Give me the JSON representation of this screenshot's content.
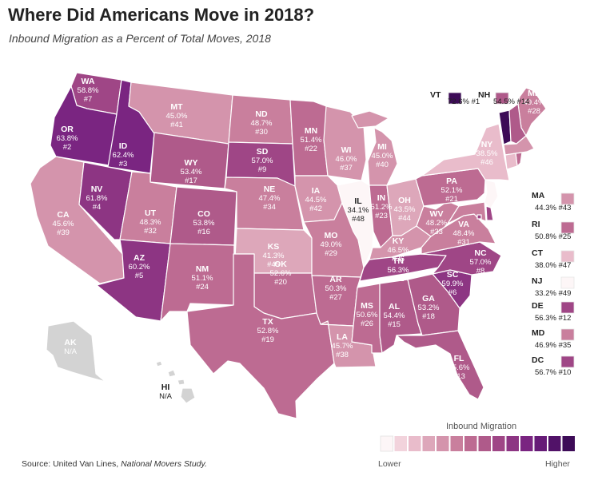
{
  "title": "Where Did Americans Move in 2018?",
  "subtitle": "Inbound Migration as a Percent of Total Moves, 2018",
  "source_prefix": "Source: United Van Lines, ",
  "source_study": "National Movers Study.",
  "legend": {
    "title": "Inbound Migration",
    "low_label": "Lower",
    "high_label": "Higher",
    "colors": [
      "#fdf6f7",
      "#f2d3dc",
      "#e9bccb",
      "#dda7ba",
      "#d494ac",
      "#c97f9d",
      "#bd6b92",
      "#af5a8a",
      "#9f4686",
      "#8d3583",
      "#7a2581",
      "#661b77",
      "#511268",
      "#3d0b57"
    ]
  },
  "colors": {
    "na": "#d3d3d3",
    "border": "#ffffff"
  },
  "states": [
    {
      "abbr": "WA",
      "value": "58.8%",
      "rank": "#7"
    },
    {
      "abbr": "OR",
      "value": "63.8%",
      "rank": "#2"
    },
    {
      "abbr": "CA",
      "value": "45.6%",
      "rank": "#39"
    },
    {
      "abbr": "ID",
      "value": "62.4%",
      "rank": "#3"
    },
    {
      "abbr": "NV",
      "value": "61.8%",
      "rank": "#4"
    },
    {
      "abbr": "MT",
      "value": "45.0%",
      "rank": "#41"
    },
    {
      "abbr": "WY",
      "value": "53.4%",
      "rank": "#17"
    },
    {
      "abbr": "UT",
      "value": "48.3%",
      "rank": "#32"
    },
    {
      "abbr": "AZ",
      "value": "60.2%",
      "rank": "#5"
    },
    {
      "abbr": "CO",
      "value": "53.8%",
      "rank": "#16"
    },
    {
      "abbr": "NM",
      "value": "51.1%",
      "rank": "#24"
    },
    {
      "abbr": "ND",
      "value": "48.7%",
      "rank": "#30"
    },
    {
      "abbr": "SD",
      "value": "57.0%",
      "rank": "#9"
    },
    {
      "abbr": "NE",
      "value": "47.4%",
      "rank": "#34"
    },
    {
      "abbr": "KS",
      "value": "41.3%",
      "rank": "#45"
    },
    {
      "abbr": "OK",
      "value": "52.6%",
      "rank": "#20"
    },
    {
      "abbr": "TX",
      "value": "52.8%",
      "rank": "#19"
    },
    {
      "abbr": "MN",
      "value": "51.4%",
      "rank": "#22"
    },
    {
      "abbr": "IA",
      "value": "44.5%",
      "rank": "#42"
    },
    {
      "abbr": "MO",
      "value": "49.0%",
      "rank": "#29"
    },
    {
      "abbr": "AR",
      "value": "50.3%",
      "rank": "#27"
    },
    {
      "abbr": "LA",
      "value": "45.7%",
      "rank": "#38"
    },
    {
      "abbr": "WI",
      "value": "46.0%",
      "rank": "#37"
    },
    {
      "abbr": "IL",
      "value": "34.1%",
      "rank": "#48"
    },
    {
      "abbr": "MI",
      "value": "45.0%",
      "rank": "#40"
    },
    {
      "abbr": "IN",
      "value": "51.2%",
      "rank": "#23"
    },
    {
      "abbr": "OH",
      "value": "43.5%",
      "rank": "#44"
    },
    {
      "abbr": "KY",
      "value": "46.5%",
      "rank": "#36"
    },
    {
      "abbr": "TN",
      "value": "56.3%",
      "rank": "#11"
    },
    {
      "abbr": "MS",
      "value": "50.6%",
      "rank": "#26"
    },
    {
      "abbr": "AL",
      "value": "54.4%",
      "rank": "#15"
    },
    {
      "abbr": "GA",
      "value": "53.2%",
      "rank": "#18"
    },
    {
      "abbr": "FL",
      "value": "55.6%",
      "rank": "#13"
    },
    {
      "abbr": "SC",
      "value": "59.9%",
      "rank": "#6"
    },
    {
      "abbr": "NC",
      "value": "57.0%",
      "rank": "#8"
    },
    {
      "abbr": "VA",
      "value": "48.4%",
      "rank": "#31"
    },
    {
      "abbr": "WV",
      "value": "48.2%",
      "rank": "#33"
    },
    {
      "abbr": "PA",
      "value": "52.1%",
      "rank": "#21"
    },
    {
      "abbr": "NY",
      "value": "38.5%",
      "rank": "#46"
    },
    {
      "abbr": "ME",
      "value": "49.4%",
      "rank": "#28"
    },
    {
      "abbr": "VT",
      "value": "72.6% #1"
    },
    {
      "abbr": "NH",
      "value": "54.5% #14"
    },
    {
      "abbr": "MA",
      "value": "44.3% #43"
    },
    {
      "abbr": "RI",
      "value": "50.8% #25"
    },
    {
      "abbr": "CT",
      "value": "38.0% #47"
    },
    {
      "abbr": "NJ",
      "value": "33.2% #49"
    },
    {
      "abbr": "DE",
      "value": "56.3% #12"
    },
    {
      "abbr": "MD",
      "value": "46.9% #35"
    },
    {
      "abbr": "DC",
      "value": "56.7% #10"
    },
    {
      "abbr": "AK",
      "value": "N/A"
    },
    {
      "abbr": "HI",
      "value": "N/A"
    }
  ]
}
